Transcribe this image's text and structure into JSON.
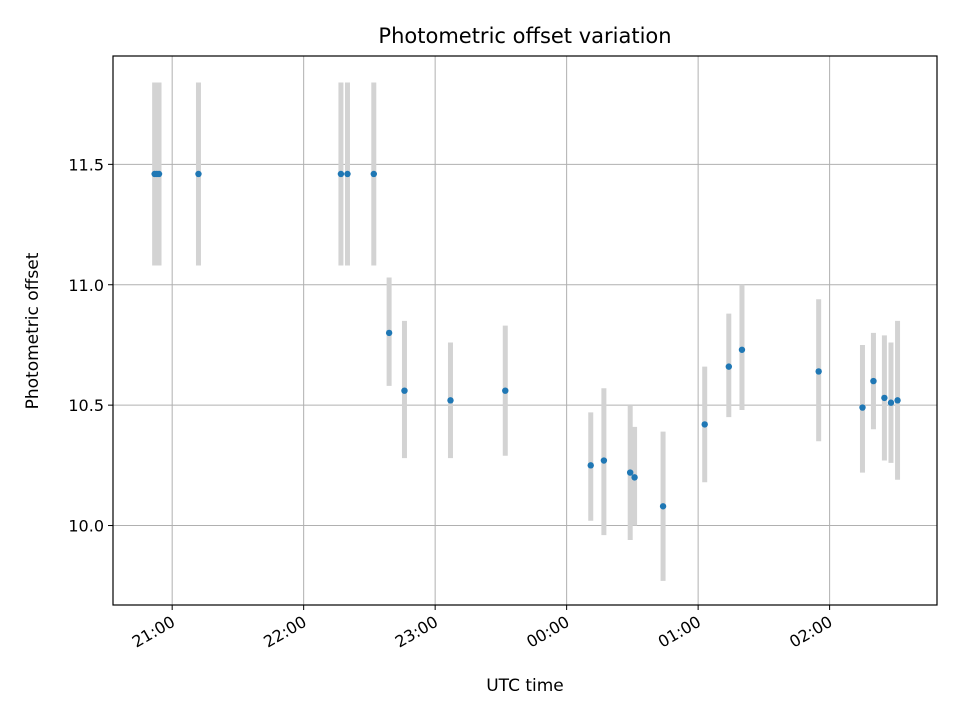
{
  "chart_data": {
    "type": "scatter",
    "title": "Photometric offset variation",
    "xlabel": "UTC time",
    "ylabel": "Photometric offset",
    "grid": true,
    "x_tick_labels": [
      "21:00",
      "22:00",
      "23:00",
      "00:00",
      "01:00",
      "02:00"
    ],
    "x_tick_times": [
      "2024-01-01T21:00",
      "2024-01-01T22:00",
      "2024-01-01T23:00",
      "2024-01-02T00:00",
      "2024-01-02T01:00",
      "2024-01-02T02:00"
    ],
    "x_range": [
      "2024-01-01T20:33",
      "2024-01-02T02:49"
    ],
    "y_tick_labels": [
      "10.0",
      "10.5",
      "11.0",
      "11.5"
    ],
    "y_tick_values": [
      10.0,
      10.5,
      11.0,
      11.5
    ],
    "ylim": [
      9.67,
      11.95
    ],
    "colors": {
      "points": "#1f77b4",
      "errorbars": "#d3d3d3",
      "grid": "#b0b0b0"
    },
    "points": [
      {
        "x": "2024-01-01T20:52",
        "y": 11.46,
        "low": 11.08,
        "high": 11.84
      },
      {
        "x": "2024-01-01T20:53",
        "y": 11.46,
        "low": 11.08,
        "high": 11.84
      },
      {
        "x": "2024-01-01T20:54",
        "y": 11.46,
        "low": 11.08,
        "high": 11.84
      },
      {
        "x": "2024-01-01T21:12",
        "y": 11.46,
        "low": 11.08,
        "high": 11.84
      },
      {
        "x": "2024-01-01T22:17",
        "y": 11.46,
        "low": 11.08,
        "high": 11.84
      },
      {
        "x": "2024-01-01T22:20",
        "y": 11.46,
        "low": 11.08,
        "high": 11.84
      },
      {
        "x": "2024-01-01T22:32",
        "y": 11.46,
        "low": 11.08,
        "high": 11.84
      },
      {
        "x": "2024-01-01T22:39",
        "y": 10.8,
        "low": 10.58,
        "high": 11.03
      },
      {
        "x": "2024-01-01T22:46",
        "y": 10.56,
        "low": 10.28,
        "high": 10.85
      },
      {
        "x": "2024-01-01T23:07",
        "y": 10.52,
        "low": 10.28,
        "high": 10.76
      },
      {
        "x": "2024-01-01T23:32",
        "y": 10.56,
        "low": 10.29,
        "high": 10.83
      },
      {
        "x": "2024-01-02T00:11",
        "y": 10.25,
        "low": 10.02,
        "high": 10.47
      },
      {
        "x": "2024-01-02T00:17",
        "y": 10.27,
        "low": 9.96,
        "high": 10.57
      },
      {
        "x": "2024-01-02T00:29",
        "y": 10.22,
        "low": 9.94,
        "high": 10.5
      },
      {
        "x": "2024-01-02T00:31",
        "y": 10.2,
        "low": 10.0,
        "high": 10.41
      },
      {
        "x": "2024-01-02T00:44",
        "y": 10.08,
        "low": 9.77,
        "high": 10.39
      },
      {
        "x": "2024-01-02T01:03",
        "y": 10.42,
        "low": 10.18,
        "high": 10.66
      },
      {
        "x": "2024-01-02T01:14",
        "y": 10.66,
        "low": 10.45,
        "high": 10.88
      },
      {
        "x": "2024-01-02T01:20",
        "y": 10.73,
        "low": 10.48,
        "high": 11.0
      },
      {
        "x": "2024-01-02T01:55",
        "y": 10.64,
        "low": 10.35,
        "high": 10.94
      },
      {
        "x": "2024-01-02T02:15",
        "y": 10.49,
        "low": 10.22,
        "high": 10.75
      },
      {
        "x": "2024-01-02T02:20",
        "y": 10.6,
        "low": 10.4,
        "high": 10.8
      },
      {
        "x": "2024-01-02T02:25",
        "y": 10.53,
        "low": 10.27,
        "high": 10.79
      },
      {
        "x": "2024-01-02T02:28",
        "y": 10.51,
        "low": 10.26,
        "high": 10.76
      },
      {
        "x": "2024-01-02T02:31",
        "y": 10.52,
        "low": 10.19,
        "high": 10.85
      }
    ]
  }
}
